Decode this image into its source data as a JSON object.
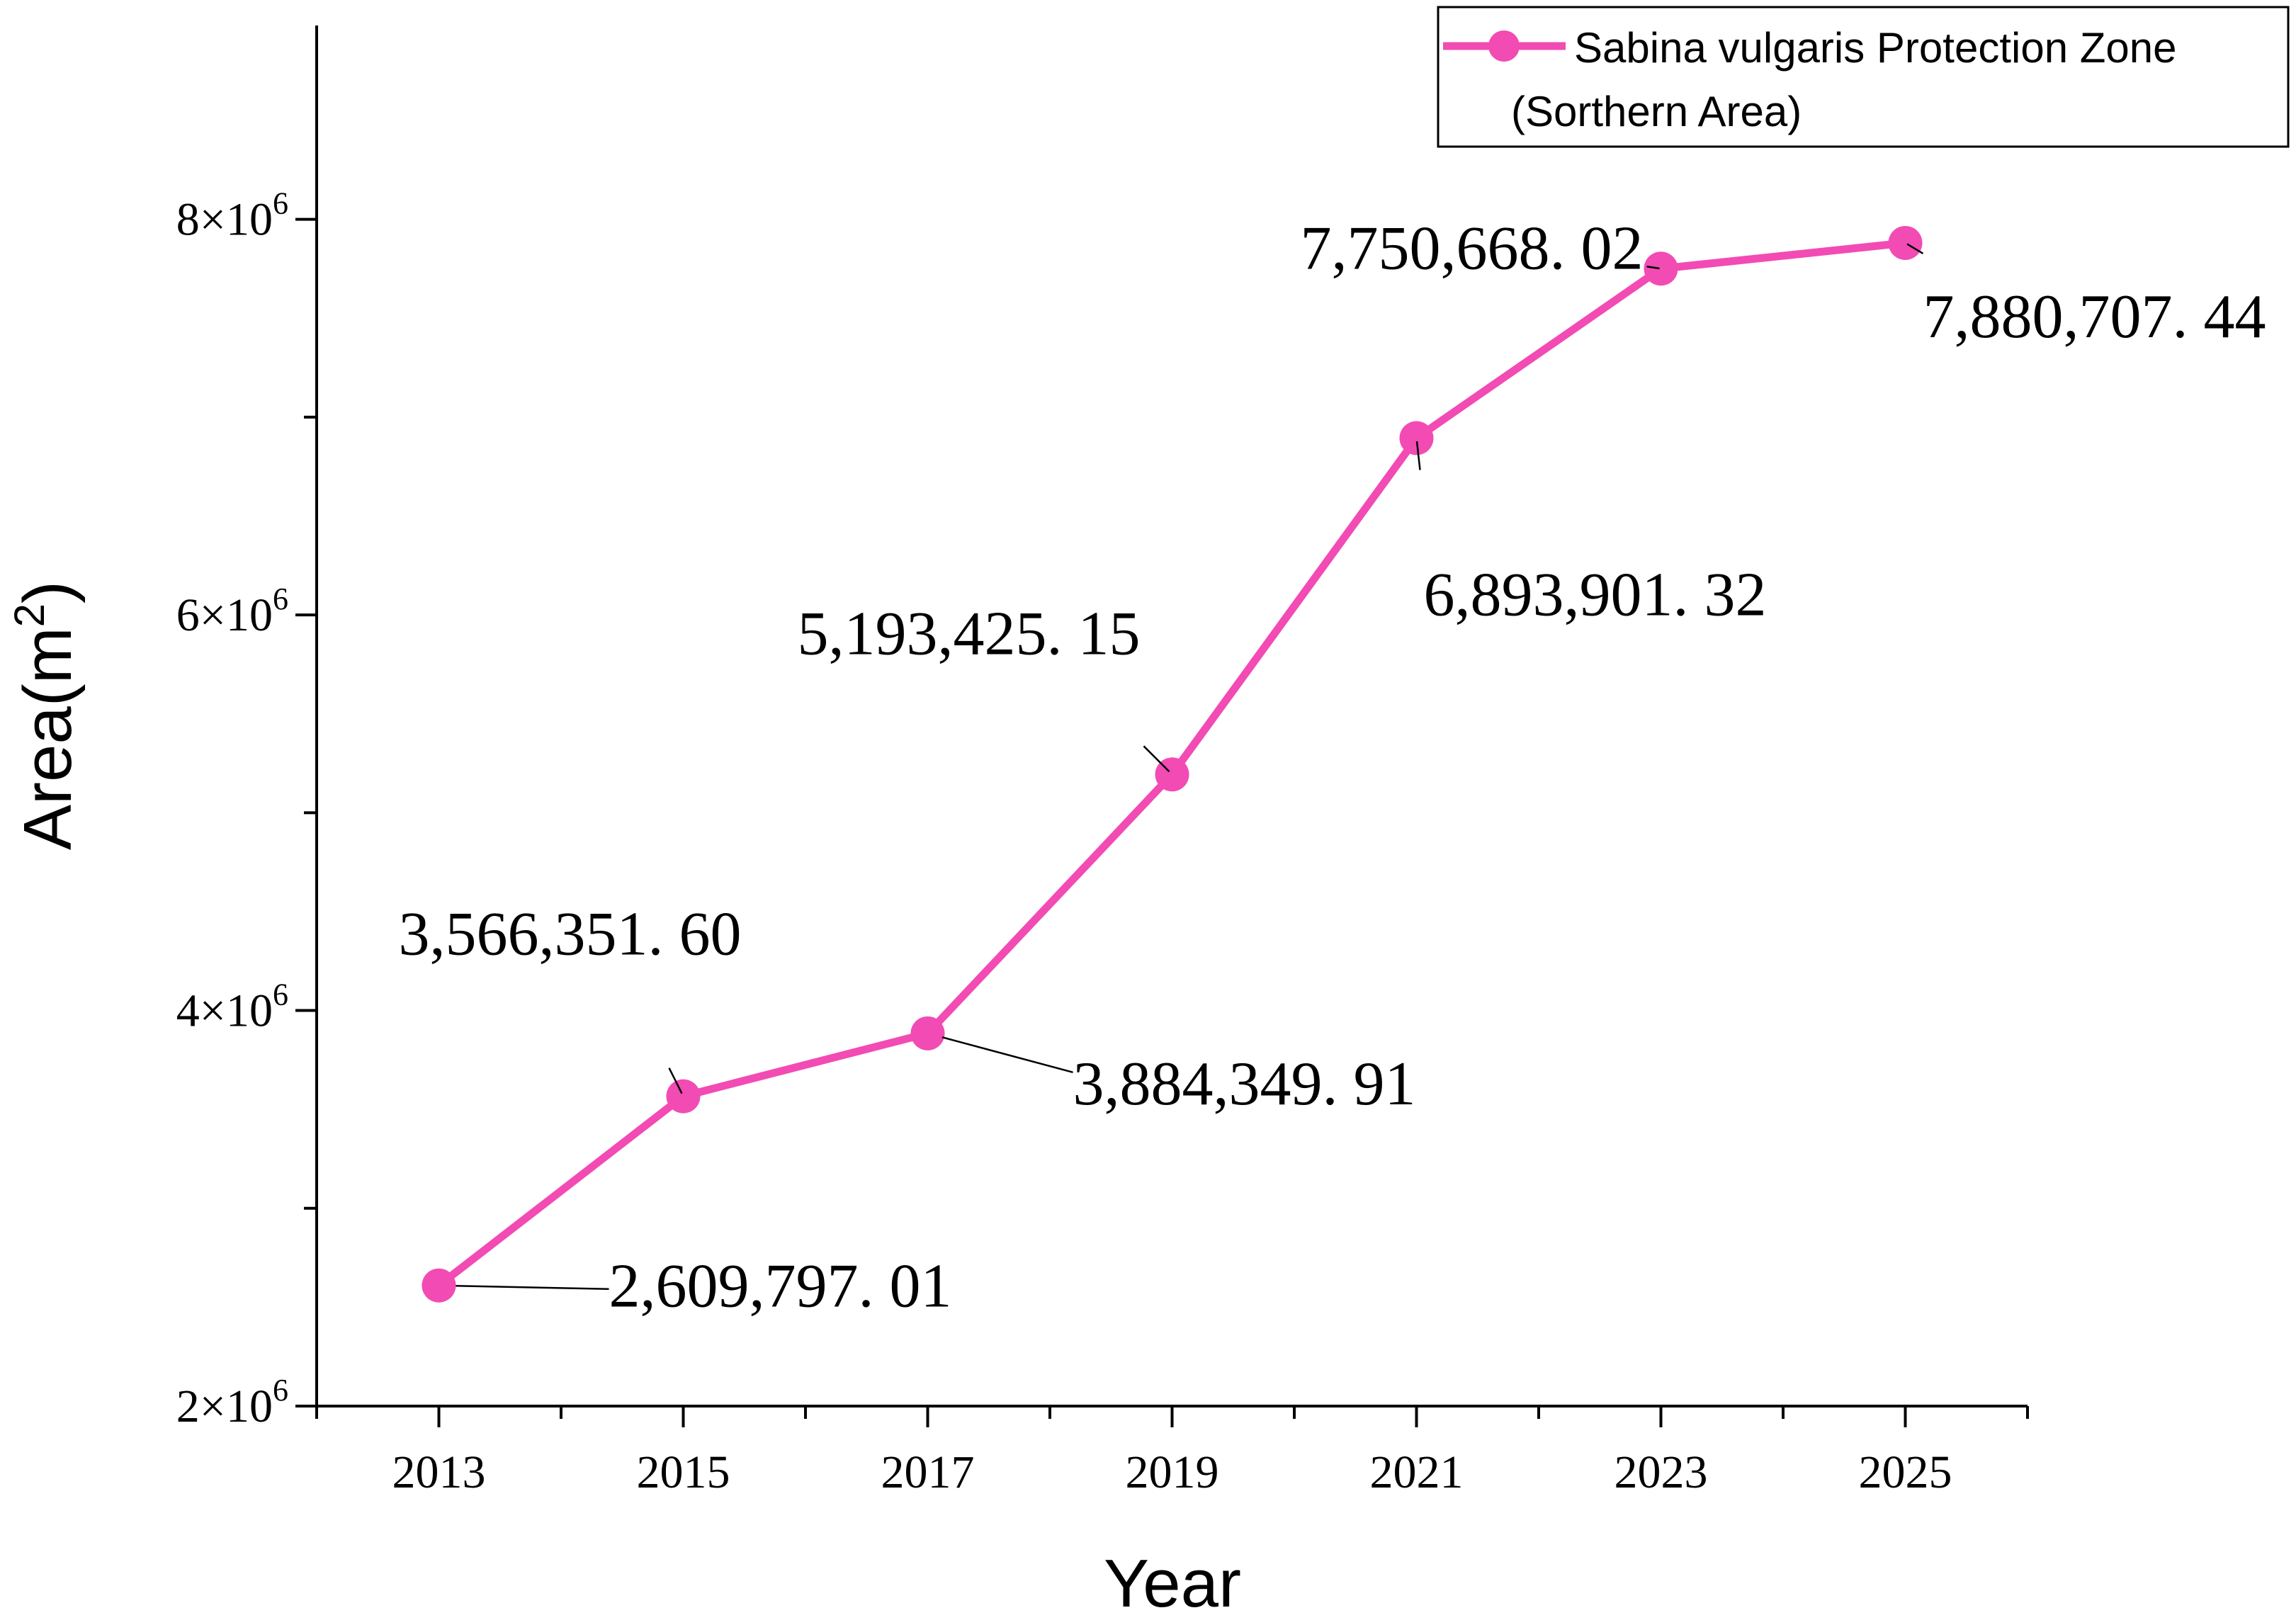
{
  "chart_data": {
    "type": "line",
    "title": "",
    "xlabel": "Year",
    "ylabel": "Area(m²)",
    "ylabel_base": "Area(m",
    "ylabel_sup": "2",
    "ylabel_close": ")",
    "x": [
      2013,
      2015,
      2017,
      2019,
      2021,
      2023,
      2025
    ],
    "x_tick_labels": [
      "2013",
      "2015",
      "2017",
      "2019",
      "2021",
      "2023",
      "2025"
    ],
    "xlim": [
      2012,
      2026
    ],
    "ylim": [
      2000000,
      8980000
    ],
    "y_ticks": [
      2000000,
      4000000,
      6000000,
      8000000
    ],
    "y_tick_labels": [
      {
        "mantissa": "2",
        "exp": "6"
      },
      {
        "mantissa": "4",
        "exp": "6"
      },
      {
        "mantissa": "6",
        "exp": "6"
      },
      {
        "mantissa": "8",
        "exp": "6"
      }
    ],
    "y_tick_times": "×10",
    "series": [
      {
        "name": "Sabina vulgaris Protection Zone (Sorthern Area)",
        "legend_lines": [
          "Sabina vulgaris Protection Zone",
          "(Sorthern Area)"
        ],
        "color": "#f24bb4",
        "values": [
          2609797.01,
          3566351.6,
          3884349.91,
          5193425.15,
          6893901.32,
          7750668.02,
          7880707.44
        ],
        "data_labels": [
          "2,609,797. 01",
          "3,566,351. 60",
          "3,884,349. 91",
          "5,193,425. 15",
          "6,893,901. 32",
          "7,750,668. 02",
          "7,880,707. 44"
        ]
      }
    ],
    "grid": false,
    "legend_position": "top-right"
  }
}
